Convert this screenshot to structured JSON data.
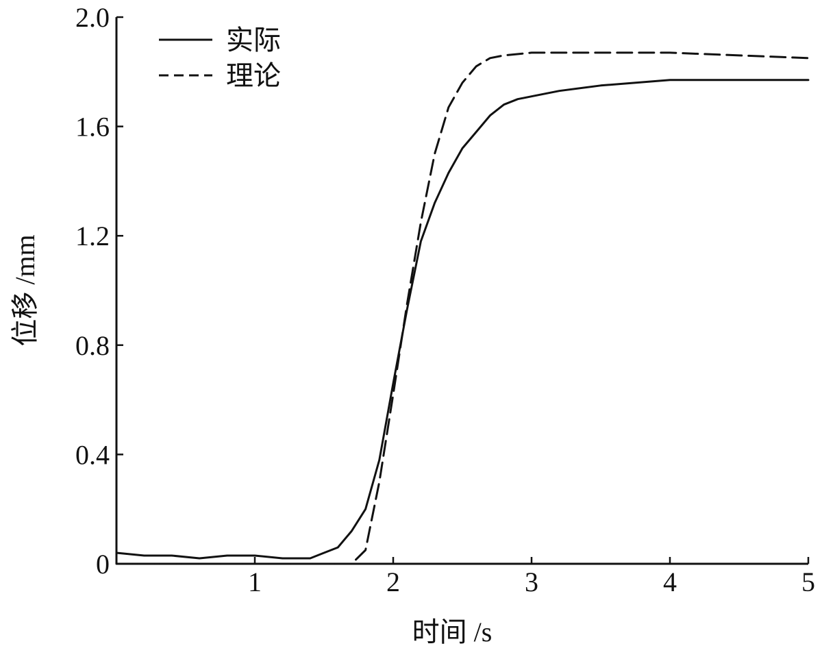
{
  "chart_data": {
    "type": "line",
    "xlabel": "时间 /s",
    "ylabel": "位移 /mm",
    "xlim": [
      0,
      5
    ],
    "ylim": [
      0,
      2.0
    ],
    "x_ticks": [
      1,
      2,
      3,
      4,
      5
    ],
    "x_tick_labels": [
      "1",
      "2",
      "3",
      "4",
      "5"
    ],
    "y_ticks": [
      0,
      0.4,
      0.8,
      1.2,
      1.6,
      2.0
    ],
    "y_tick_labels": [
      "0",
      "0.4",
      "0.8",
      "1.2",
      "1.6",
      "2.0"
    ],
    "grid": false,
    "legend_position": "top-left",
    "series": [
      {
        "name": "实际",
        "style": "solid",
        "color": "#111111",
        "x": [
          0,
          0.2,
          0.4,
          0.6,
          0.8,
          1.0,
          1.2,
          1.4,
          1.5,
          1.6,
          1.7,
          1.8,
          1.9,
          2.0,
          2.1,
          2.2,
          2.3,
          2.4,
          2.5,
          2.6,
          2.7,
          2.8,
          2.9,
          3.0,
          3.2,
          3.5,
          4.0,
          4.5,
          5.0
        ],
        "y": [
          0.04,
          0.03,
          0.03,
          0.02,
          0.03,
          0.03,
          0.02,
          0.02,
          0.04,
          0.06,
          0.12,
          0.2,
          0.38,
          0.66,
          0.93,
          1.18,
          1.32,
          1.43,
          1.52,
          1.58,
          1.64,
          1.68,
          1.7,
          1.71,
          1.73,
          1.75,
          1.77,
          1.77,
          1.77
        ]
      },
      {
        "name": "理论",
        "style": "dashed",
        "color": "#111111",
        "x": [
          0,
          0.5,
          1.0,
          1.5,
          1.7,
          1.8,
          1.9,
          2.0,
          2.1,
          2.2,
          2.3,
          2.4,
          2.5,
          2.6,
          2.7,
          2.8,
          3.0,
          3.5,
          4.0,
          4.5,
          5.0
        ],
        "y": [
          0,
          0,
          0,
          0,
          0.0,
          0.05,
          0.3,
          0.62,
          0.95,
          1.25,
          1.5,
          1.67,
          1.76,
          1.82,
          1.85,
          1.86,
          1.87,
          1.87,
          1.87,
          1.86,
          1.85
        ]
      }
    ]
  }
}
